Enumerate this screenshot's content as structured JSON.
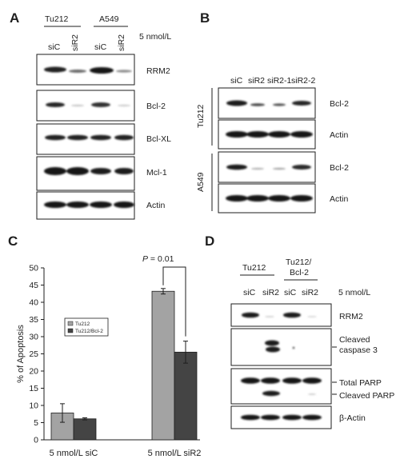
{
  "panels": {
    "A": {
      "label": "A",
      "cell_lines": [
        "Tu212",
        "A549"
      ],
      "lanes": [
        "siC",
        "siR2",
        "siC",
        "siR2"
      ],
      "concentration": "5 nmol/L",
      "blots": [
        "RRM2",
        "Bcl-2",
        "Bcl-XL",
        "Mcl-1",
        "Actin"
      ]
    },
    "B": {
      "label": "B",
      "lanes": [
        "siC",
        "siR2",
        "siR2-1",
        "siR2-2"
      ],
      "cell_lines": [
        "Tu212",
        "A549"
      ],
      "blots": [
        "Bcl-2",
        "Actin",
        "Bcl-2",
        "Actin"
      ]
    },
    "C": {
      "label": "C",
      "pvalue_italic": "P",
      "pvalue_rest": " = 0.01"
    },
    "D": {
      "label": "D",
      "cell_lines": [
        "Tu212",
        "Tu212/",
        "Bcl-2"
      ],
      "lanes": [
        "siC",
        "siR2",
        "siC",
        "siR2"
      ],
      "concentration": "5 nmol/L",
      "blots": [
        "RRM2",
        "Cleaved",
        "caspase 3",
        "Total PARP",
        "Cleaved PARP",
        "β-Actin"
      ]
    }
  },
  "chart_data": {
    "type": "bar",
    "categories": [
      "5 nmol/L siC",
      "5 nmol/L siR2"
    ],
    "series": [
      {
        "name": "Tu212",
        "values": [
          7.8,
          43.2
        ],
        "errors": [
          2.7,
          0.8
        ],
        "color": "#a3a3a3"
      },
      {
        "name": "Tu212/Bcl-2",
        "values": [
          6.1,
          25.5
        ],
        "errors": [
          0.3,
          3.2
        ],
        "color": "#444444"
      }
    ],
    "ylabel": "% of Apoptosis",
    "xlabel": "",
    "ylim": [
      0,
      50
    ],
    "yticks": [
      0,
      5,
      10,
      15,
      20,
      25,
      30,
      35,
      40,
      45,
      50
    ],
    "legend_position": "middle-left",
    "grid": false
  }
}
